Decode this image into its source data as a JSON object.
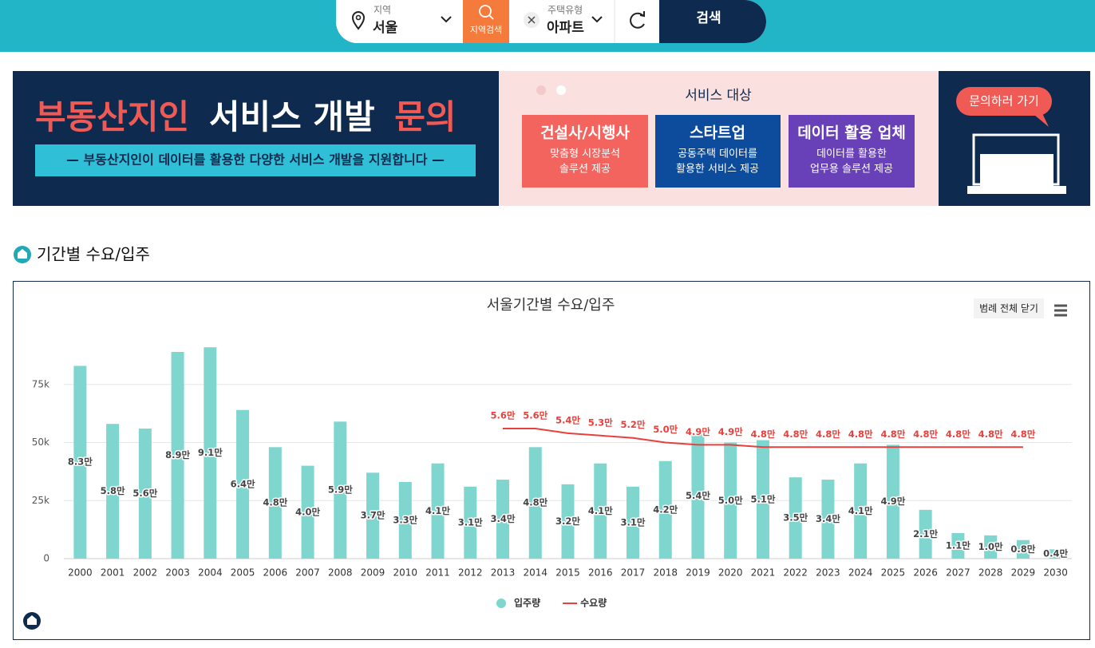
{
  "header": {
    "region_label": "지역",
    "region": "서울",
    "region_search": "지역검색",
    "type_label": "주택유형",
    "type": "아파트",
    "search": "검색"
  },
  "banner": {
    "title_parts": [
      "부동산지인",
      "서비스 개발",
      "문의"
    ],
    "subtitle": "— 부동산지인이 데이터를 활용한 다양한 서비스 개발을 지원합니다 —",
    "targets_title": "서비스 대상",
    "targets": [
      {
        "name": "건설사/시행사",
        "lines": [
          "맞춤형 시장분석",
          "솔루션 제공"
        ]
      },
      {
        "name": "스타트업",
        "lines": [
          "공동주택 데이터를",
          "활용한 서비스 제공"
        ]
      },
      {
        "name": "데이터 활용 업체",
        "lines": [
          "데이터를 활용한",
          "업무용 솔루션 제공"
        ]
      }
    ],
    "cta": "문의하러 가기"
  },
  "section_title": "기간별 수요/입주",
  "chart_data": {
    "type": "bar",
    "title": "서울기간별 수요/입주",
    "legend_toggle": "범례 전체 닫기",
    "categories": [
      "2000",
      "2001",
      "2002",
      "2003",
      "2004",
      "2005",
      "2006",
      "2007",
      "2008",
      "2009",
      "2010",
      "2011",
      "2012",
      "2013",
      "2014",
      "2015",
      "2016",
      "2017",
      "2018",
      "2019",
      "2020",
      "2021",
      "2022",
      "2023",
      "2024",
      "2025",
      "2026",
      "2027",
      "2028",
      "2029",
      "2030"
    ],
    "series": [
      {
        "name": "입주량",
        "type": "bar",
        "color": "#7fd6cf",
        "values": [
          83000,
          58000,
          56000,
          89000,
          91000,
          64000,
          48000,
          40000,
          59000,
          37000,
          33000,
          41000,
          31000,
          34000,
          48000,
          32000,
          41000,
          31000,
          42000,
          54000,
          50000,
          51000,
          35000,
          34000,
          41000,
          49000,
          21000,
          11000,
          10000,
          8000,
          4000
        ],
        "value_labels": [
          "8.3만",
          "5.8만",
          "5.6만",
          "8.9만",
          "9.1만",
          "6.4만",
          "4.8만",
          "4.0만",
          "5.9만",
          "3.7만",
          "3.3만",
          "4.1만",
          "3.1만",
          "3.4만",
          "4.8만",
          "3.2만",
          "4.1만",
          "3.1만",
          "4.2만",
          "5.4만",
          "5.0만",
          "5.1만",
          "3.5만",
          "3.4만",
          "4.1만",
          "4.9만",
          "2.1만",
          "1.1만",
          "1.0만",
          "0.8만",
          "0.4만"
        ]
      },
      {
        "name": "수요량",
        "type": "line",
        "color": "#e8403c",
        "values": [
          null,
          null,
          null,
          null,
          null,
          null,
          null,
          null,
          null,
          null,
          null,
          null,
          null,
          56000,
          56000,
          54000,
          53000,
          52000,
          50000,
          49000,
          49000,
          48000,
          48000,
          48000,
          48000,
          48000,
          48000,
          48000,
          48000,
          48000,
          null
        ],
        "value_labels": [
          null,
          null,
          null,
          null,
          null,
          null,
          null,
          null,
          null,
          null,
          null,
          null,
          null,
          "5.6만",
          "5.6만",
          "5.4만",
          "5.3만",
          "5.2만",
          "5.0만",
          "4.9만",
          "4.9만",
          "4.8만",
          "4.8만",
          "4.8만",
          "4.8만",
          "4.8만",
          "4.8만",
          "4.8만",
          "4.8만",
          "4.8만",
          null
        ]
      }
    ],
    "ylim": [
      0,
      100000
    ],
    "yticks": [
      0,
      {
        "value": 25000,
        "label": "25k"
      },
      {
        "value": 50000,
        "label": "50k"
      },
      {
        "value": 75000,
        "label": "75k"
      }
    ],
    "grid": true
  }
}
